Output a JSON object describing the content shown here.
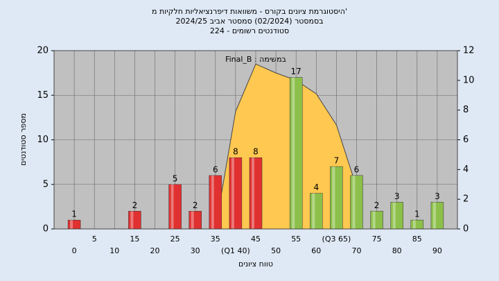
{
  "chart_data": {
    "type": "bar",
    "title_lines": [
      "היסטוגרמת ציונים בקורס - משוואות דיפרנציאליות חלקיות מ'",
      "בסמסטר (02/2024) סמסטר אביב 2024/25",
      "סטודנטים רשומים - 224"
    ],
    "annotation": "Final_B : במשימה",
    "y_label": "מספר סטודנטים",
    "x_label": "טווח ציונים",
    "categories": [
      "0",
      "5",
      "10",
      "15",
      "20",
      "25",
      "30",
      "35",
      "(Q1 40)",
      "45",
      "50",
      "55",
      "60",
      "(Q3 65)",
      "70",
      "75",
      "80",
      "85",
      "90"
    ],
    "series": [
      {
        "type": "area",
        "axis": "y2",
        "color": "#ffc850",
        "values": [
          null,
          null,
          null,
          null,
          null,
          null,
          null,
          0,
          7.9,
          11.1,
          10.5,
          10,
          9.1,
          7,
          2.8,
          null,
          null,
          null,
          null
        ]
      },
      {
        "type": "bar",
        "axis": "y",
        "colors": [
          "#e03030",
          null,
          null,
          "#e03030",
          null,
          "#e03030",
          "#e03030",
          "#e03030",
          "#e03030",
          "#e03030",
          null,
          "#8cc04a",
          "#8cc04a",
          "#8cc04a",
          "#8cc04a",
          "#8cc04a",
          "#8cc04a",
          "#8cc04a",
          "#8cc04a"
        ],
        "values": [
          1,
          null,
          null,
          2,
          null,
          5,
          2,
          6,
          8,
          8,
          null,
          17,
          4,
          7,
          6,
          2,
          3,
          1,
          3
        ]
      }
    ],
    "ylim": [
      0,
      20
    ],
    "yticks": [
      0,
      5,
      10,
      15,
      20
    ],
    "y2lim": [
      0,
      12
    ],
    "y2ticks": [
      0,
      2,
      4,
      6,
      8,
      10,
      12
    ],
    "grid": true
  }
}
